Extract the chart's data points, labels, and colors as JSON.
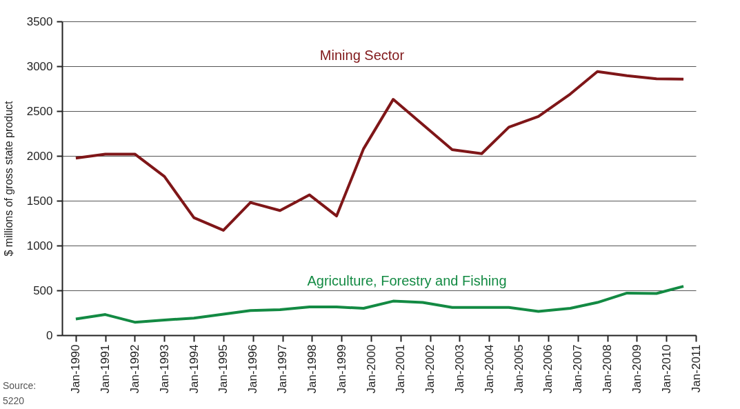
{
  "chart_data": {
    "type": "line",
    "ylabel": "$ millions of gross state product",
    "x": [
      "1990-01",
      "1991-01",
      "1992-01",
      "1993-01",
      "1994-01",
      "1995-01",
      "1995-12",
      "1996-12",
      "1997-12",
      "1998-11",
      "1999-10",
      "2000-10",
      "2001-10",
      "2002-10",
      "2003-10",
      "2004-09",
      "2005-09",
      "2006-10",
      "2007-09",
      "2008-09",
      "2009-09",
      "2010-08"
    ],
    "series": [
      {
        "name": "Mining Sector",
        "color": "#7f1618",
        "values": [
          1975,
          2020,
          2020,
          1770,
          1310,
          1170,
          1480,
          1390,
          1565,
          1330,
          2080,
          2630,
          2350,
          2070,
          2025,
          2320,
          2440,
          2690,
          2940,
          2895,
          2860,
          2855
        ]
      },
      {
        "name": "Agriculture, Forestry and Fishing",
        "color": "#138a43",
        "values": [
          180,
          230,
          145,
          170,
          190,
          235,
          275,
          285,
          315,
          315,
          300,
          380,
          365,
          310,
          310,
          310,
          265,
          300,
          365,
          470,
          465,
          545
        ]
      }
    ],
    "xlim": [
      "1989-07-15",
      "2011-01-01"
    ],
    "xticks": [
      {
        "value": "1990-01",
        "label": "Jan-1990"
      },
      {
        "value": "1991-01",
        "label": "Jan-1991"
      },
      {
        "value": "1992-01",
        "label": "Jan-1992"
      },
      {
        "value": "1993-01",
        "label": "Jan-1993"
      },
      {
        "value": "1994-01",
        "label": "Jan-1994"
      },
      {
        "value": "1995-01",
        "label": "Jan-1995"
      },
      {
        "value": "1996-01",
        "label": "Jan-1996"
      },
      {
        "value": "1997-01",
        "label": "Jan-1997"
      },
      {
        "value": "1998-01",
        "label": "Jan-1998"
      },
      {
        "value": "1999-01",
        "label": "Jan-1999"
      },
      {
        "value": "2000-01",
        "label": "Jan-2000"
      },
      {
        "value": "2001-01",
        "label": "Jan-2001"
      },
      {
        "value": "2002-01",
        "label": "Jan-2002"
      },
      {
        "value": "2003-01",
        "label": "Jan-2003"
      },
      {
        "value": "2004-01",
        "label": "Jan-2004"
      },
      {
        "value": "2005-01",
        "label": "Jan-2005"
      },
      {
        "value": "2006-01",
        "label": "Jan-2006"
      },
      {
        "value": "2007-01",
        "label": "Jan-2007"
      },
      {
        "value": "2008-01",
        "label": "Jan-2008"
      },
      {
        "value": "2009-01",
        "label": "Jan-2009"
      },
      {
        "value": "2010-01",
        "label": "Jan-2010"
      },
      {
        "value": "2011-01",
        "label": "Jan-2011"
      }
    ],
    "ylim": [
      0,
      3500
    ],
    "yticks": [
      0,
      500,
      1000,
      1500,
      2000,
      2500,
      3000,
      3500
    ],
    "grid": "y",
    "legend": false,
    "marker": "none",
    "line_style": "solid",
    "annotations": [
      "Source:",
      "5220"
    ]
  }
}
